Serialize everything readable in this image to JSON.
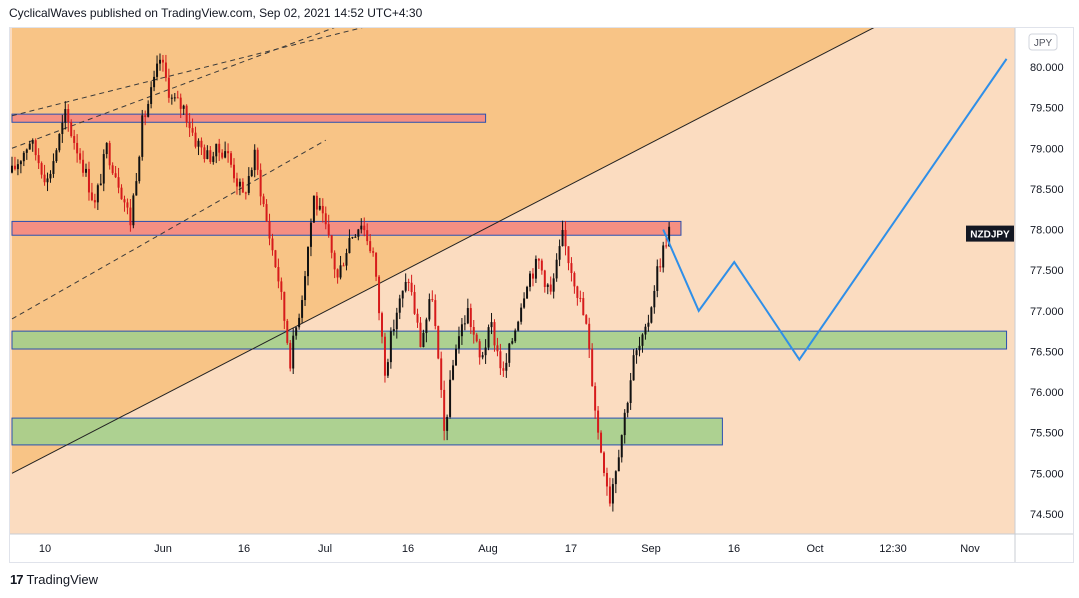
{
  "header": {
    "published": "CyclicalWaves published on TradingView.com, Sep 02, 2021 14:52 UTC+4:30"
  },
  "footer": {
    "logo_text": "17",
    "brand": "TradingView"
  },
  "colors": {
    "background": "#fbdcc0",
    "channel_fill": "#f8c486",
    "resistance": "#f58f82",
    "support": "#a4cf8c",
    "candle_up": "#111111",
    "candle_down": "#d61b1b",
    "projection": "#2f8fe8",
    "symbol_badge": "#131722"
  },
  "chart_data": {
    "type": "candlestick",
    "symbol": "NZDJPY",
    "currency": "JPY",
    "ylim": [
      74.2,
      80.5
    ],
    "y_ticks": [
      "80.000",
      "79.500",
      "79.000",
      "78.500",
      "78.000",
      "77.500",
      "77.000",
      "76.500",
      "76.000",
      "75.500",
      "75.000",
      "74.500"
    ],
    "x_ticks": [
      "10",
      "Jun",
      "16",
      "Jul",
      "16",
      "Aug",
      "17",
      "Sep",
      "16",
      "Oct",
      "12:30",
      "Nov"
    ],
    "price_path": [
      [
        0,
        78.7
      ],
      [
        3,
        79.1
      ],
      [
        6,
        78.6
      ],
      [
        9,
        79.4
      ],
      [
        12,
        78.8
      ],
      [
        14,
        78.3
      ],
      [
        16,
        79.0
      ],
      [
        18,
        78.6
      ],
      [
        20,
        78.1
      ],
      [
        22,
        79.3
      ],
      [
        24,
        79.8
      ],
      [
        25,
        80.1
      ],
      [
        27,
        79.6
      ],
      [
        29,
        79.5
      ],
      [
        31,
        79.1
      ],
      [
        33,
        78.9
      ],
      [
        36,
        79.0
      ],
      [
        39,
        78.4
      ],
      [
        41,
        78.9
      ],
      [
        43,
        78.1
      ],
      [
        45,
        77.4
      ],
      [
        47,
        76.4
      ],
      [
        49,
        77.2
      ],
      [
        51,
        78.4
      ],
      [
        53,
        78.0
      ],
      [
        55,
        77.4
      ],
      [
        57,
        77.9
      ],
      [
        59,
        78.1
      ],
      [
        61,
        77.7
      ],
      [
        63,
        76.3
      ],
      [
        65,
        77.0
      ],
      [
        67,
        77.4
      ],
      [
        69,
        76.6
      ],
      [
        71,
        77.2
      ],
      [
        73,
        75.5
      ],
      [
        75,
        76.6
      ],
      [
        77,
        77.0
      ],
      [
        79,
        76.4
      ],
      [
        81,
        76.8
      ],
      [
        83,
        76.2
      ],
      [
        85,
        76.8
      ],
      [
        87,
        77.4
      ],
      [
        89,
        77.6
      ],
      [
        91,
        77.2
      ],
      [
        93,
        77.9
      ],
      [
        95,
        77.4
      ],
      [
        97,
        76.8
      ],
      [
        99,
        75.5
      ],
      [
        101,
        74.7
      ],
      [
        103,
        75.5
      ],
      [
        105,
        76.4
      ],
      [
        107,
        76.7
      ],
      [
        109,
        77.5
      ],
      [
        111,
        78.0
      ]
    ],
    "last_price": 77.95,
    "resistance_zones": [
      {
        "top": 79.42,
        "bottom": 79.32,
        "x_start": 0,
        "x_end": 80
      },
      {
        "top": 78.1,
        "bottom": 77.93,
        "x_start": 0,
        "x_end": 113
      }
    ],
    "support_zones": [
      {
        "top": 76.75,
        "bottom": 76.53,
        "x_start": 0,
        "x_end": 168
      },
      {
        "top": 75.68,
        "bottom": 75.35,
        "x_start": 0,
        "x_end": 120
      }
    ],
    "rising_trendline": [
      [
        0,
        75.0
      ],
      [
        146,
        80.5
      ]
    ],
    "parallel_dashed_lines": [
      [
        [
          0,
          79.4
        ],
        [
          60,
          80.5
        ]
      ],
      [
        [
          0,
          79.0
        ],
        [
          55,
          80.5
        ]
      ],
      [
        [
          0,
          76.9
        ],
        [
          53,
          79.1
        ]
      ]
    ],
    "projection_path": [
      [
        110,
        78.0
      ],
      [
        116,
        77.0
      ],
      [
        122,
        77.6
      ],
      [
        133,
        76.4
      ],
      [
        168,
        80.1
      ]
    ],
    "grid": false,
    "legend": "none"
  }
}
